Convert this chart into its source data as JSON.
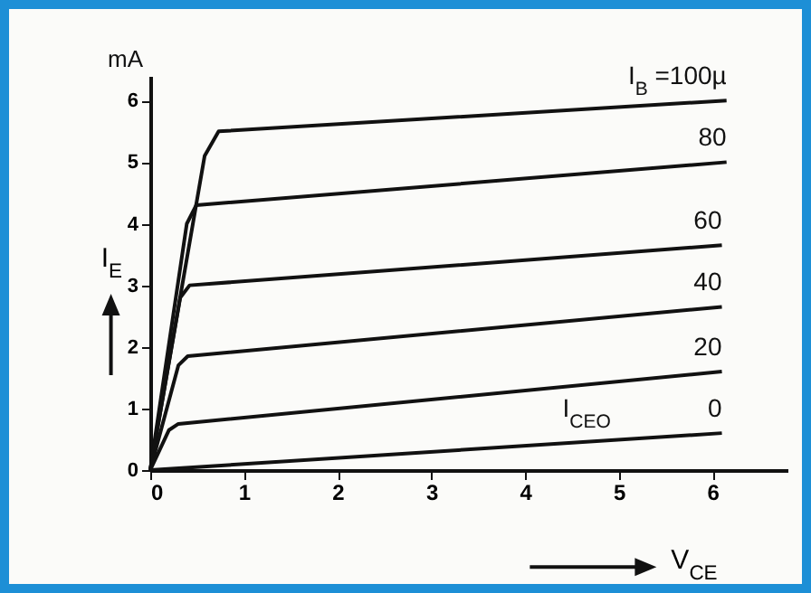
{
  "chart_data": {
    "type": "line",
    "xlabel": "V$_{CE}$",
    "ylabel": "I$_{E}$",
    "xlim": [
      0,
      6.8
    ],
    "xticks": [
      0,
      1,
      2,
      3,
      4,
      5,
      6
    ],
    "ylim": [
      0,
      6.4
    ],
    "yticks": [
      0,
      1,
      2,
      3,
      4,
      5,
      6
    ],
    "grid": false,
    "legend": false,
    "marker": "none",
    "line_style": "solid",
    "series": [
      {
        "name": "I$_{B}$ =100µ",
        "color": "#111111",
        "x": [
          0,
          0.58,
          0.73,
          6.15
        ],
        "values": [
          0,
          5.1,
          5.5,
          6.0
        ]
      },
      {
        "name": "80",
        "color": "#111111",
        "x": [
          0,
          0.39,
          0.49,
          6.15
        ],
        "values": [
          0,
          4.0,
          4.3,
          5.0
        ]
      },
      {
        "name": "60",
        "color": "#111111",
        "x": [
          0,
          0.32,
          0.42,
          6.1
        ],
        "values": [
          0,
          2.8,
          3.0,
          3.65
        ]
      },
      {
        "name": "40",
        "color": "#111111",
        "x": [
          0,
          0.3,
          0.4,
          6.1
        ],
        "values": [
          0,
          1.7,
          1.85,
          2.65
        ]
      },
      {
        "name": "20",
        "color": "#111111",
        "x": [
          0,
          0.2,
          0.3,
          6.1
        ],
        "values": [
          0,
          0.65,
          0.75,
          1.6
        ]
      },
      {
        "name": "0",
        "color": "#111111",
        "x": [
          0,
          6.1
        ],
        "values": [
          0,
          0.6
        ]
      }
    ],
    "annotations": [
      "mA",
      {
        "text": "I$_{CEO}$",
        "x": 4.4,
        "y": 0.43
      }
    ]
  }
}
